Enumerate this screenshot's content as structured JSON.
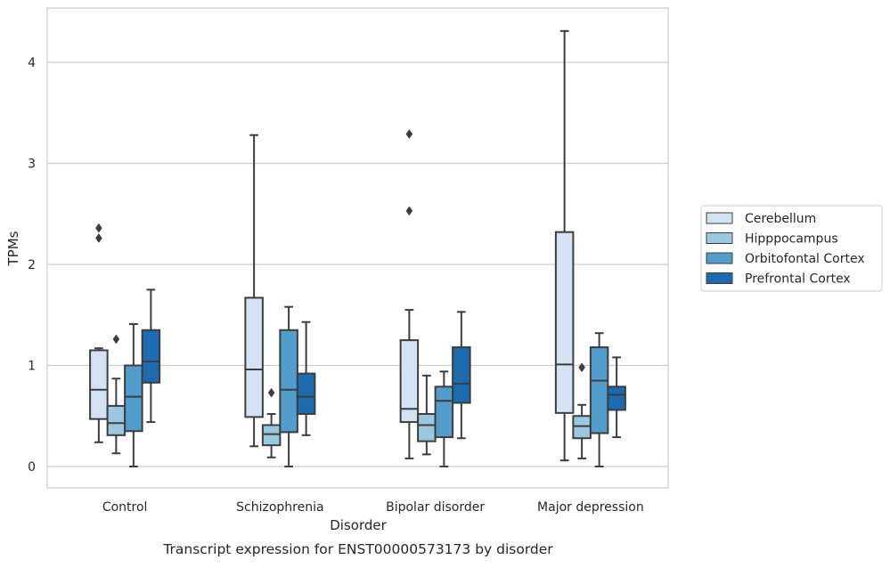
{
  "chart_data": {
    "type": "box",
    "xlabel": "Disorder",
    "ylabel": "TPMs",
    "caption": "Transcript expression for ENST00000573173 by disorder",
    "ylim": [
      -0.2,
      4.55
    ],
    "yticks": [
      0,
      1,
      2,
      3,
      4
    ],
    "grid": "horizontal",
    "legend_position": "right",
    "categories": [
      "Control",
      "Schizophrenia",
      "Bipolar disorder",
      "Major depression"
    ],
    "series": [
      {
        "name": "Cerebellum",
        "color": "#d3e3f3",
        "boxes": [
          {
            "whislo": 0.24,
            "q1": 0.47,
            "med": 0.76,
            "q3": 1.15,
            "whishi": 1.17,
            "fliers": [
              2.26,
              2.36
            ]
          },
          {
            "whislo": 0.2,
            "q1": 0.49,
            "med": 0.96,
            "q3": 1.67,
            "whishi": 3.28,
            "fliers": []
          },
          {
            "whislo": 0.08,
            "q1": 0.44,
            "med": 0.57,
            "q3": 1.25,
            "whishi": 1.55,
            "fliers": [
              2.53,
              3.29
            ]
          },
          {
            "whislo": 0.06,
            "q1": 0.53,
            "med": 1.01,
            "q3": 2.32,
            "whishi": 4.31,
            "fliers": []
          }
        ]
      },
      {
        "name": "Hipppocampus",
        "color": "#9ac8e0",
        "boxes": [
          {
            "whislo": 0.13,
            "q1": 0.31,
            "med": 0.43,
            "q3": 0.6,
            "whishi": 0.87,
            "fliers": [
              1.26
            ]
          },
          {
            "whislo": 0.09,
            "q1": 0.21,
            "med": 0.32,
            "q3": 0.41,
            "whishi": 0.52,
            "fliers": [
              0.73
            ]
          },
          {
            "whislo": 0.12,
            "q1": 0.25,
            "med": 0.41,
            "q3": 0.52,
            "whishi": 0.9,
            "fliers": []
          },
          {
            "whislo": 0.08,
            "q1": 0.28,
            "med": 0.4,
            "q3": 0.5,
            "whishi": 0.61,
            "fliers": [
              0.98
            ]
          }
        ]
      },
      {
        "name": "Orbitofontal Cortex",
        "color": "#529dcc",
        "boxes": [
          {
            "whislo": 0.0,
            "q1": 0.35,
            "med": 0.69,
            "q3": 1.0,
            "whishi": 1.41,
            "fliers": []
          },
          {
            "whislo": 0.0,
            "q1": 0.34,
            "med": 0.76,
            "q3": 1.35,
            "whishi": 1.58,
            "fliers": []
          },
          {
            "whislo": 0.0,
            "q1": 0.29,
            "med": 0.65,
            "q3": 0.79,
            "whishi": 0.94,
            "fliers": []
          },
          {
            "whislo": 0.0,
            "q1": 0.33,
            "med": 0.85,
            "q3": 1.18,
            "whishi": 1.32,
            "fliers": []
          }
        ]
      },
      {
        "name": "Prefrontal Cortex",
        "color": "#1c6aaf",
        "boxes": [
          {
            "whislo": 0.44,
            "q1": 0.83,
            "med": 1.04,
            "q3": 1.35,
            "whishi": 1.75,
            "fliers": []
          },
          {
            "whislo": 0.31,
            "q1": 0.52,
            "med": 0.69,
            "q3": 0.92,
            "whishi": 1.43,
            "fliers": []
          },
          {
            "whislo": 0.28,
            "q1": 0.63,
            "med": 0.82,
            "q3": 1.18,
            "whishi": 1.53,
            "fliers": []
          },
          {
            "whislo": 0.29,
            "q1": 0.56,
            "med": 0.71,
            "q3": 0.79,
            "whishi": 1.08,
            "fliers": []
          }
        ]
      }
    ]
  }
}
